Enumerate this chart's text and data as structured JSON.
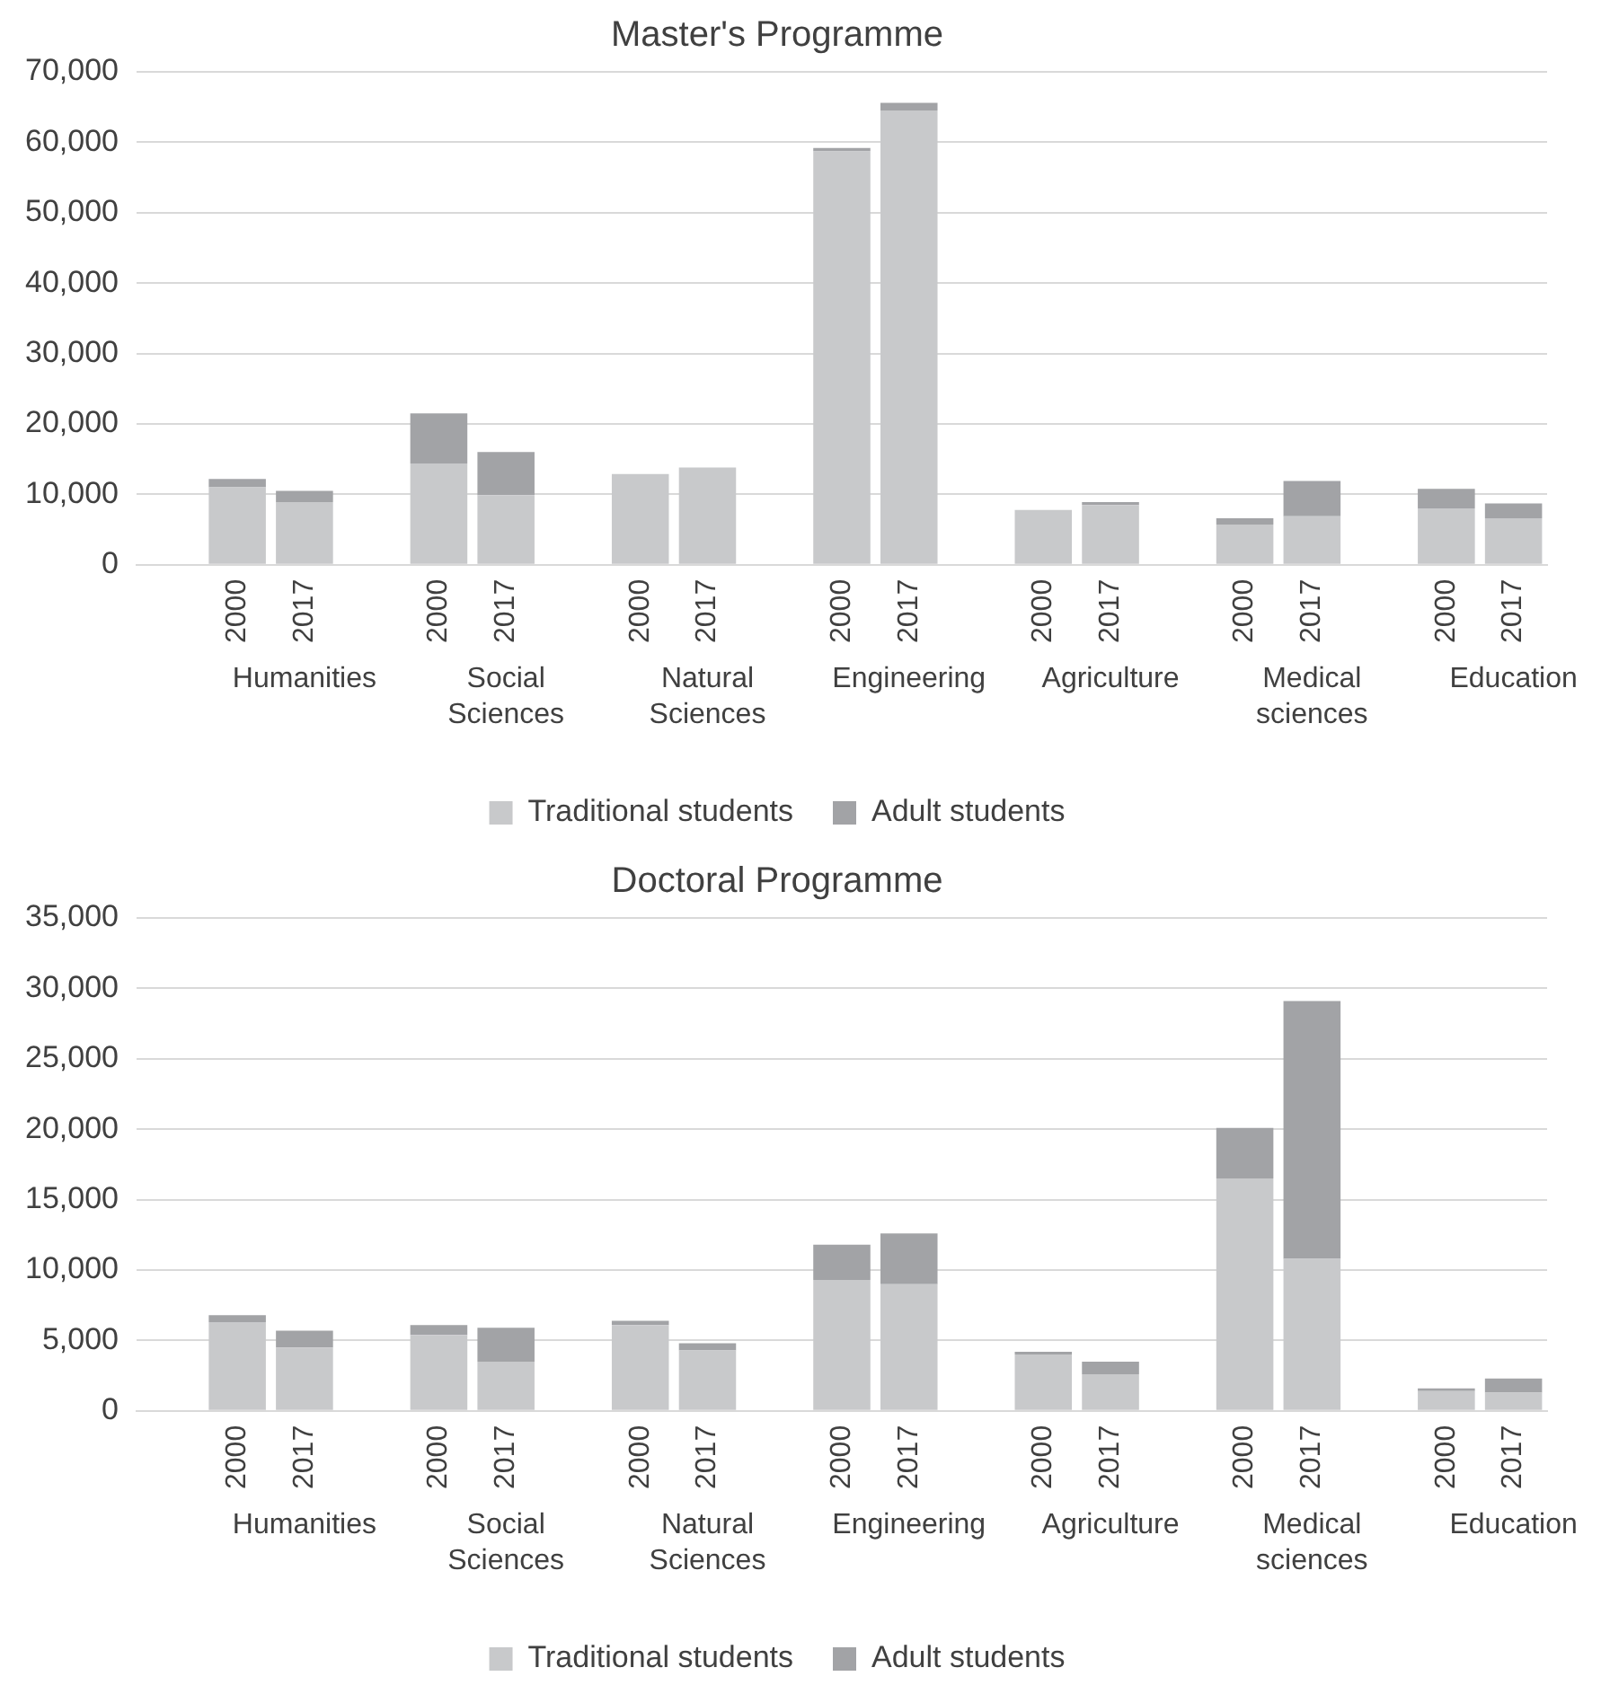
{
  "chart_data": [
    {
      "type": "bar",
      "title": "Master's Programme",
      "stacked": true,
      "legend": "bottom",
      "grid": "y",
      "categories": [
        null,
        "2000",
        "2017",
        null,
        "2000",
        "2017",
        null,
        "2000",
        "2017",
        null,
        "2000",
        "2017",
        null,
        "2000",
        "2017",
        null,
        "2000",
        "2017",
        null,
        "2000",
        "2017"
      ],
      "annotations": [
        "Humanities",
        "Social Sciences",
        "Natural Sciences",
        "Engineering",
        "Agriculture",
        "Medical sciences",
        "Education"
      ],
      "ylim": [
        0,
        70000
      ],
      "yticks": [
        {
          "value": 0,
          "label": "0"
        },
        {
          "value": 10000,
          "label": "10,000"
        },
        {
          "value": 20000,
          "label": "20,000"
        },
        {
          "value": 30000,
          "label": "30,000"
        },
        {
          "value": 40000,
          "label": "40,000"
        },
        {
          "value": 50000,
          "label": "50,000"
        },
        {
          "value": 60000,
          "label": "60,000"
        },
        {
          "value": 70000,
          "label": "70,000"
        }
      ],
      "series": [
        {
          "name": "Traditional students",
          "color": "#c8c9cb",
          "values": [
            null,
            11000,
            8900,
            null,
            14400,
            9900,
            null,
            12900,
            13800,
            null,
            58700,
            64500,
            null,
            7800,
            8500,
            null,
            5700,
            6900,
            null,
            8000,
            6600
          ]
        },
        {
          "name": "Adult students",
          "color": "#a2a3a6",
          "values": [
            null,
            1200,
            1600,
            null,
            7100,
            6100,
            null,
            0,
            0,
            null,
            500,
            1100,
            null,
            0,
            400,
            null,
            900,
            5000,
            null,
            2800,
            2100
          ]
        }
      ]
    },
    {
      "type": "bar",
      "title": "Doctoral Programme",
      "stacked": true,
      "legend": "bottom",
      "grid": "y",
      "categories": [
        null,
        "2000",
        "2017",
        null,
        "2000",
        "2017",
        null,
        "2000",
        "2017",
        null,
        "2000",
        "2017",
        null,
        "2000",
        "2017",
        null,
        "2000",
        "2017",
        null,
        "2000",
        "2017"
      ],
      "annotations": [
        "Humanities",
        "Social Sciences",
        "Natural Sciences",
        "Engineering",
        "Agriculture",
        "Medical sciences",
        "Education"
      ],
      "ylim": [
        0,
        35000
      ],
      "yticks": [
        {
          "value": 0,
          "label": "0"
        },
        {
          "value": 5000,
          "label": "5,000"
        },
        {
          "value": 10000,
          "label": "10,000"
        },
        {
          "value": 15000,
          "label": "15,000"
        },
        {
          "value": 20000,
          "label": "20,000"
        },
        {
          "value": 25000,
          "label": "25,000"
        },
        {
          "value": 30000,
          "label": "30,000"
        },
        {
          "value": 35000,
          "label": "35,000"
        }
      ],
      "series": [
        {
          "name": "Traditional students",
          "color": "#c8c9cb",
          "values": [
            null,
            6300,
            4500,
            null,
            5400,
            3500,
            null,
            6100,
            4300,
            null,
            9300,
            9000,
            null,
            4000,
            2600,
            null,
            16500,
            10800,
            null,
            1400,
            1300
          ]
        },
        {
          "name": "Adult students",
          "color": "#a2a3a6",
          "values": [
            null,
            500,
            1200,
            null,
            700,
            2400,
            null,
            300,
            500,
            null,
            2500,
            3600,
            null,
            200,
            900,
            null,
            3600,
            18300,
            null,
            200,
            1000
          ]
        }
      ]
    }
  ]
}
